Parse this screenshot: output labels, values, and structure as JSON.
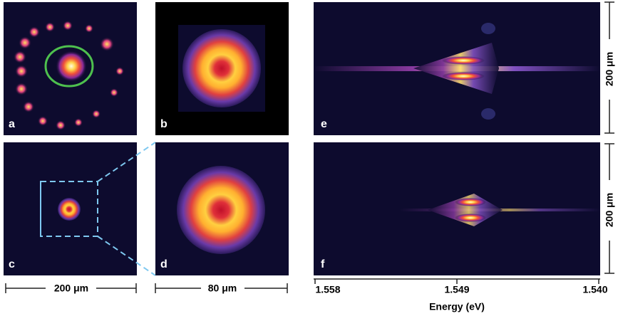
{
  "panels": [
    {
      "label": "a"
    },
    {
      "label": "b"
    },
    {
      "label": "c"
    },
    {
      "label": "d"
    },
    {
      "label": "e"
    },
    {
      "label": "f"
    }
  ],
  "scale_bars": {
    "horizontal_left": "200 μm",
    "horizontal_middle": "80 μm",
    "vertical_top": "200 μm",
    "vertical_bottom": "200 μm"
  },
  "energy_axis": {
    "label": "Energy (eV)",
    "xlim": [
      1.558,
      1.54
    ],
    "xticks": [
      {
        "value": 1.558,
        "label": "1.558"
      },
      {
        "value": 1.549,
        "label": "1.549"
      },
      {
        "value": 1.54,
        "label": "1.540"
      }
    ]
  }
}
